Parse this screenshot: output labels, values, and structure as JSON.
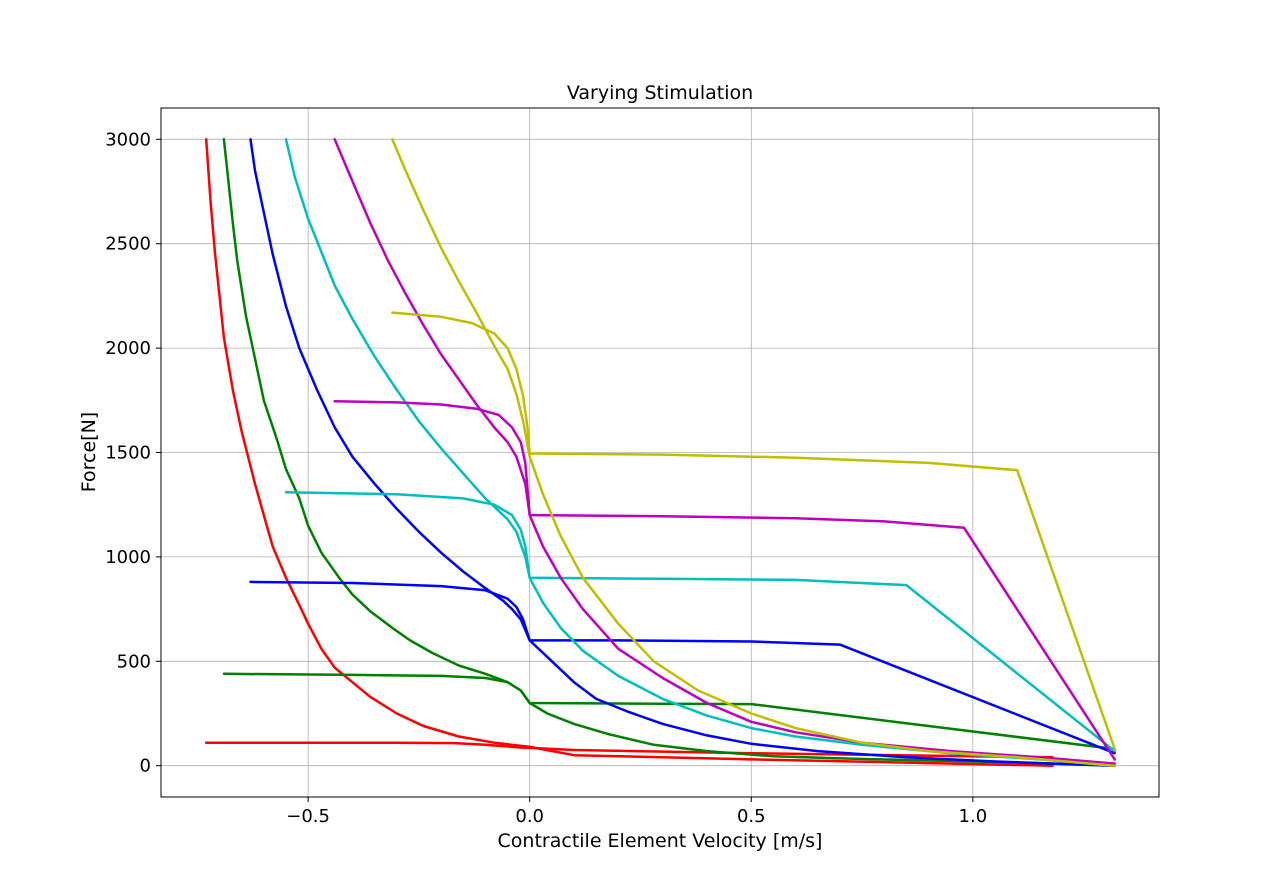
{
  "chart_data": {
    "type": "line",
    "title": "Varying Stimulation",
    "xlabel": "Contractile Element Velocity [m/s]",
    "ylabel": "Force[N]",
    "xlim": [
      -0.832,
      1.42
    ],
    "ylim": [
      -150,
      3150
    ],
    "xticks": [
      -0.5,
      0.0,
      0.5,
      1.0
    ],
    "xtick_labels": [
      "−0.5",
      "0.0",
      "0.5",
      "1.0"
    ],
    "yticks": [
      0,
      500,
      1000,
      1500,
      2000,
      2500,
      3000
    ],
    "ytick_labels": [
      "0",
      "500",
      "1000",
      "1500",
      "2000",
      "2500",
      "3000"
    ],
    "grid": true,
    "series": [
      {
        "color": "#ff0000",
        "x": [
          -0.73,
          -0.72,
          -0.71,
          -0.7,
          -0.69,
          -0.67,
          -0.65,
          -0.62,
          -0.6,
          -0.58,
          -0.55,
          -0.52,
          -0.5,
          -0.47,
          -0.44,
          -0.4,
          -0.36,
          -0.3,
          -0.24,
          -0.16,
          -0.08,
          0.0,
          0.1,
          0.5,
          1.18
        ],
        "y": [
          3000,
          2700,
          2450,
          2250,
          2050,
          1800,
          1600,
          1350,
          1200,
          1050,
          900,
          770,
          680,
          560,
          470,
          400,
          330,
          250,
          190,
          140,
          110,
          90,
          50,
          30,
          0
        ]
      },
      {
        "color": "#ff0000",
        "x": [
          -0.73,
          -0.5,
          -0.3,
          -0.17,
          -0.1,
          -0.05,
          -0.02,
          0.0,
          0.1,
          0.5,
          1.18
        ],
        "y": [
          110,
          110,
          110,
          108,
          100,
          92,
          87,
          85,
          75,
          60,
          40
        ]
      },
      {
        "color": "#008000",
        "x": [
          -0.69,
          -0.68,
          -0.67,
          -0.66,
          -0.64,
          -0.62,
          -0.6,
          -0.57,
          -0.55,
          -0.52,
          -0.5,
          -0.47,
          -0.43,
          -0.4,
          -0.36,
          -0.31,
          -0.27,
          -0.22,
          -0.16,
          -0.1,
          -0.05,
          -0.02,
          0.0,
          0.04,
          0.1,
          0.18,
          0.28,
          0.4,
          0.55,
          0.7,
          0.9,
          1.1,
          1.32
        ],
        "y": [
          3000,
          2800,
          2600,
          2420,
          2150,
          1950,
          1750,
          1560,
          1420,
          1280,
          1150,
          1020,
          900,
          820,
          740,
          660,
          600,
          540,
          480,
          440,
          400,
          360,
          300,
          250,
          200,
          150,
          100,
          70,
          45,
          35,
          25,
          15,
          0
        ]
      },
      {
        "color": "#008000",
        "x": [
          -0.69,
          -0.4,
          -0.2,
          -0.1,
          -0.05,
          -0.02,
          0.0,
          0.2,
          0.5,
          1.32
        ],
        "y": [
          440,
          435,
          430,
          420,
          400,
          360,
          300,
          298,
          295,
          80
        ]
      },
      {
        "color": "#0000ff",
        "x": [
          -0.63,
          -0.62,
          -0.6,
          -0.58,
          -0.55,
          -0.52,
          -0.48,
          -0.44,
          -0.4,
          -0.35,
          -0.3,
          -0.25,
          -0.2,
          -0.15,
          -0.1,
          -0.06,
          -0.04,
          -0.02,
          -0.01,
          0.0,
          0.05,
          0.1,
          0.15,
          0.22,
          0.3,
          0.4,
          0.5,
          0.65,
          0.85,
          1.05,
          1.32
        ],
        "y": [
          3000,
          2850,
          2650,
          2450,
          2200,
          2000,
          1800,
          1620,
          1480,
          1350,
          1230,
          1120,
          1020,
          930,
          850,
          790,
          750,
          700,
          650,
          600,
          500,
          400,
          320,
          260,
          200,
          145,
          105,
          70,
          40,
          20,
          0
        ]
      },
      {
        "color": "#0000ff",
        "x": [
          -0.63,
          -0.4,
          -0.2,
          -0.1,
          -0.05,
          -0.03,
          -0.015,
          0.0,
          0.2,
          0.5,
          0.7,
          1.32
        ],
        "y": [
          880,
          875,
          860,
          840,
          800,
          760,
          700,
          600,
          600,
          595,
          580,
          60
        ]
      },
      {
        "color": "#00bfbf",
        "x": [
          -0.55,
          -0.53,
          -0.5,
          -0.47,
          -0.44,
          -0.4,
          -0.35,
          -0.3,
          -0.25,
          -0.2,
          -0.15,
          -0.1,
          -0.05,
          -0.03,
          -0.01,
          0.0,
          0.03,
          0.07,
          0.12,
          0.2,
          0.3,
          0.4,
          0.5,
          0.6,
          0.75,
          0.95,
          1.15,
          1.32
        ],
        "y": [
          3000,
          2820,
          2620,
          2460,
          2300,
          2140,
          1960,
          1800,
          1650,
          1520,
          1400,
          1280,
          1180,
          1120,
          1000,
          900,
          780,
          660,
          550,
          430,
          320,
          240,
          180,
          140,
          100,
          60,
          30,
          0
        ]
      },
      {
        "color": "#00bfbf",
        "x": [
          -0.55,
          -0.3,
          -0.15,
          -0.08,
          -0.04,
          -0.02,
          -0.01,
          0.0,
          0.3,
          0.6,
          0.85,
          1.32
        ],
        "y": [
          1310,
          1300,
          1280,
          1250,
          1200,
          1130,
          1050,
          900,
          895,
          890,
          865,
          70
        ]
      },
      {
        "color": "#bf00bf",
        "x": [
          -0.44,
          -0.4,
          -0.36,
          -0.32,
          -0.28,
          -0.24,
          -0.2,
          -0.16,
          -0.12,
          -0.08,
          -0.05,
          -0.03,
          -0.01,
          0.0,
          0.03,
          0.07,
          0.12,
          0.2,
          0.3,
          0.4,
          0.5,
          0.6,
          0.75,
          0.95,
          1.15,
          1.32
        ],
        "y": [
          3000,
          2800,
          2600,
          2420,
          2260,
          2110,
          1970,
          1850,
          1730,
          1620,
          1550,
          1480,
          1350,
          1200,
          1050,
          900,
          750,
          560,
          420,
          300,
          210,
          160,
          110,
          70,
          40,
          10
        ]
      },
      {
        "color": "#bf00bf",
        "x": [
          -0.44,
          -0.3,
          -0.2,
          -0.12,
          -0.07,
          -0.04,
          -0.02,
          -0.01,
          0.0,
          0.3,
          0.6,
          0.8,
          0.98,
          1.32
        ],
        "y": [
          1745,
          1740,
          1730,
          1710,
          1680,
          1620,
          1550,
          1450,
          1200,
          1195,
          1185,
          1170,
          1140,
          30
        ]
      },
      {
        "color": "#bfbf00",
        "x": [
          -0.31,
          -0.28,
          -0.24,
          -0.2,
          -0.16,
          -0.12,
          -0.08,
          -0.05,
          -0.03,
          -0.015,
          0.0,
          0.03,
          0.07,
          0.12,
          0.2,
          0.28,
          0.38,
          0.5,
          0.6,
          0.75,
          0.9,
          1.1,
          1.32
        ],
        "y": [
          3000,
          2850,
          2660,
          2480,
          2320,
          2170,
          2010,
          1900,
          1780,
          1650,
          1480,
          1300,
          1100,
          900,
          680,
          500,
          360,
          250,
          180,
          110,
          70,
          40,
          0
        ]
      },
      {
        "color": "#bfbf00",
        "x": [
          -0.31,
          -0.2,
          -0.13,
          -0.08,
          -0.05,
          -0.03,
          -0.015,
          -0.005,
          0.0,
          0.3,
          0.6,
          0.9,
          1.1,
          1.32
        ],
        "y": [
          2170,
          2150,
          2120,
          2070,
          2000,
          1900,
          1770,
          1620,
          1495,
          1490,
          1475,
          1450,
          1415,
          80
        ]
      }
    ]
  }
}
